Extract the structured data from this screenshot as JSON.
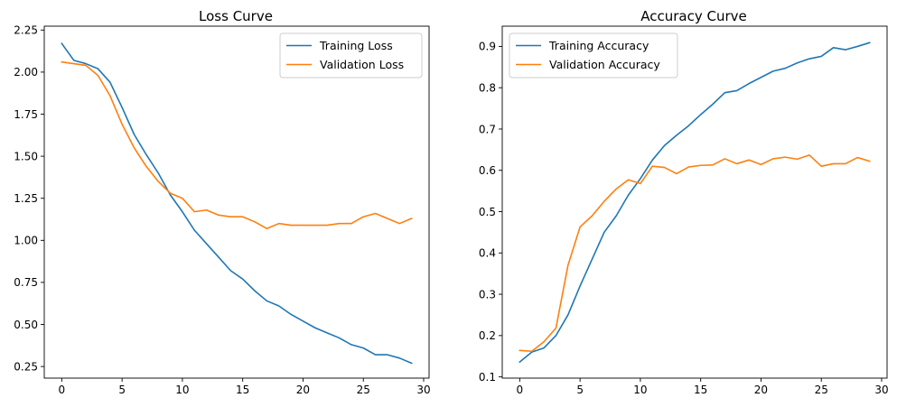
{
  "chart_data": [
    {
      "type": "line",
      "title": "Loss Curve",
      "xlabel": "",
      "ylabel": "",
      "xlim": [
        -1.45,
        30.45
      ],
      "ylim": [
        0.181,
        2.273
      ],
      "xticks": [
        0,
        5,
        10,
        15,
        20,
        25,
        30
      ],
      "xtick_labels": [
        "0",
        "5",
        "10",
        "15",
        "20",
        "25",
        "30"
      ],
      "yticks": [
        0.25,
        0.5,
        0.75,
        1.0,
        1.25,
        1.5,
        1.75,
        2.0,
        2.25
      ],
      "ytick_labels": [
        "0.25",
        "0.50",
        "0.75",
        "1.00",
        "1.25",
        "1.50",
        "1.75",
        "2.00",
        "2.25"
      ],
      "legend_position": "top-right",
      "x": [
        0,
        1,
        2,
        3,
        4,
        5,
        6,
        7,
        8,
        9,
        10,
        11,
        12,
        13,
        14,
        15,
        16,
        17,
        18,
        19,
        20,
        21,
        22,
        23,
        24,
        25,
        26,
        27,
        28,
        29
      ],
      "series": [
        {
          "name": "Training Loss",
          "color": "#1f77b4",
          "values": [
            2.17,
            2.07,
            2.05,
            2.02,
            1.94,
            1.79,
            1.63,
            1.51,
            1.4,
            1.27,
            1.17,
            1.06,
            0.98,
            0.9,
            0.82,
            0.77,
            0.7,
            0.64,
            0.61,
            0.56,
            0.52,
            0.48,
            0.45,
            0.42,
            0.38,
            0.36,
            0.32,
            0.32,
            0.3,
            0.27
          ]
        },
        {
          "name": "Validation Loss",
          "color": "#ff7f0e",
          "values": [
            2.06,
            2.05,
            2.04,
            1.98,
            1.86,
            1.69,
            1.55,
            1.44,
            1.35,
            1.28,
            1.25,
            1.17,
            1.18,
            1.15,
            1.14,
            1.14,
            1.11,
            1.07,
            1.1,
            1.09,
            1.09,
            1.09,
            1.09,
            1.1,
            1.1,
            1.14,
            1.16,
            1.13,
            1.1,
            1.13
          ]
        }
      ]
    },
    {
      "type": "line",
      "title": "Accuracy Curve",
      "xlabel": "",
      "ylabel": "",
      "xlim": [
        -1.45,
        30.45
      ],
      "ylim": [
        0.097,
        0.949
      ],
      "xticks": [
        0,
        5,
        10,
        15,
        20,
        25,
        30
      ],
      "xtick_labels": [
        "0",
        "5",
        "10",
        "15",
        "20",
        "25",
        "30"
      ],
      "yticks": [
        0.1,
        0.2,
        0.3,
        0.4,
        0.5,
        0.6,
        0.7,
        0.8,
        0.9
      ],
      "ytick_labels": [
        "0.1",
        "0.2",
        "0.3",
        "0.4",
        "0.5",
        "0.6",
        "0.7",
        "0.8",
        "0.9"
      ],
      "legend_position": "top-left",
      "x": [
        0,
        1,
        2,
        3,
        4,
        5,
        6,
        7,
        8,
        9,
        10,
        11,
        12,
        13,
        14,
        15,
        16,
        17,
        18,
        19,
        20,
        21,
        22,
        23,
        24,
        25,
        26,
        27,
        28,
        29
      ],
      "series": [
        {
          "name": "Training Accuracy",
          "color": "#1f77b4",
          "values": [
            0.136,
            0.16,
            0.17,
            0.2,
            0.25,
            0.32,
            0.385,
            0.45,
            0.49,
            0.54,
            0.58,
            0.625,
            0.66,
            0.685,
            0.708,
            0.735,
            0.76,
            0.788,
            0.793,
            0.81,
            0.825,
            0.84,
            0.847,
            0.86,
            0.87,
            0.876,
            0.897,
            0.892,
            0.9,
            0.909
          ]
        },
        {
          "name": "Validation Accuracy",
          "color": "#ff7f0e",
          "values": [
            0.164,
            0.162,
            0.185,
            0.218,
            0.37,
            0.463,
            0.49,
            0.525,
            0.555,
            0.577,
            0.568,
            0.61,
            0.607,
            0.592,
            0.608,
            0.612,
            0.613,
            0.628,
            0.616,
            0.625,
            0.614,
            0.628,
            0.632,
            0.627,
            0.637,
            0.61,
            0.616,
            0.616,
            0.631,
            0.622
          ]
        }
      ]
    }
  ]
}
